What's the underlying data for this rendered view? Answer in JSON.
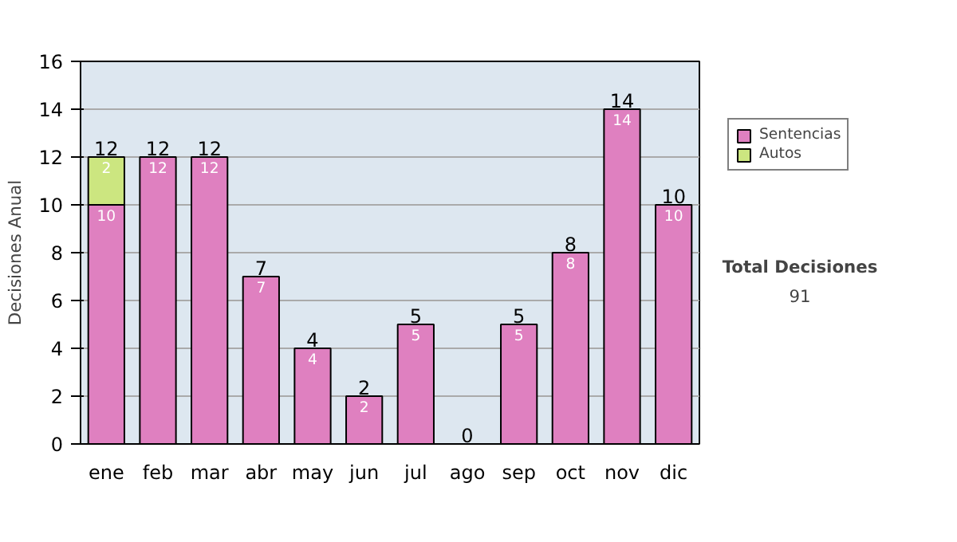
{
  "chart_data": {
    "type": "bar",
    "stacked": true,
    "ylabel": "Decisiones Anual",
    "categories": [
      "ene",
      "feb",
      "mar",
      "abr",
      "may",
      "jun",
      "jul",
      "ago",
      "sep",
      "oct",
      "nov",
      "dic"
    ],
    "series": [
      {
        "name": "Sentencias",
        "color": "#df80c0",
        "values": [
          10,
          12,
          12,
          7,
          4,
          2,
          5,
          0,
          5,
          8,
          14,
          10
        ],
        "value_labels": [
          "10",
          "12",
          "12",
          "7",
          "4",
          "2",
          "5",
          null,
          "5",
          "8",
          "14",
          "10"
        ]
      },
      {
        "name": "Autos",
        "color": "#cce680",
        "values": [
          2,
          0,
          0,
          0,
          0,
          0,
          0,
          0,
          0,
          0,
          0,
          0
        ],
        "value_labels": [
          "2",
          null,
          null,
          null,
          null,
          null,
          null,
          null,
          null,
          null,
          null,
          null
        ]
      }
    ],
    "totals": [
      "12",
      "12",
      "12",
      "7",
      "4",
      "2",
      "5",
      "0",
      "5",
      "8",
      "14",
      "10"
    ],
    "ylim": [
      0,
      16
    ],
    "yticks": [
      0,
      2,
      4,
      6,
      8,
      10,
      12,
      14,
      16
    ],
    "grid": "y",
    "legend": "right",
    "annotations": [
      "Total Decisiones",
      "91"
    ]
  }
}
